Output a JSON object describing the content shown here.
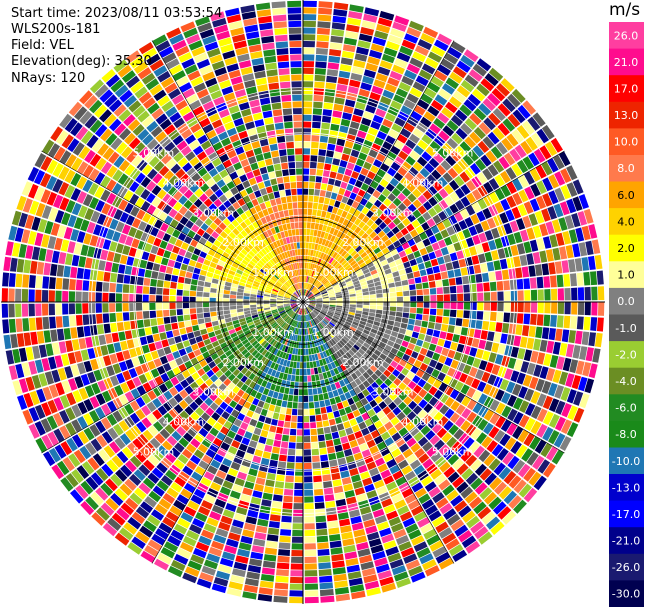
{
  "header": {
    "start_time": "Start time: 2023/08/11 03:53:54",
    "station": "WLS200s-181",
    "field": "Field: VEL",
    "elevation": "Elevation(deg): 35.30",
    "nrays": "NRays: 120"
  },
  "colorbar": {
    "unit": "m/s",
    "levels": [
      "26.0",
      "21.0",
      "17.0",
      "13.0",
      "10.0",
      "8.0",
      "6.0",
      "4.0",
      "2.0",
      "1.0",
      "0.0",
      "-1.0",
      "-2.0",
      "-4.0",
      "-6.0",
      "-8.0",
      "-10.0",
      "-13.0",
      "-17.0",
      "-21.0",
      "-26.0",
      "-30.0"
    ],
    "colors": [
      "#ff3ea0",
      "#ff0c8e",
      "#ff0000",
      "#ee2400",
      "#ff5a24",
      "#ff7a4c",
      "#ffa400",
      "#ffd200",
      "#ffff00",
      "#ffff99",
      "#808080",
      "#5a5a5a",
      "#9acd32",
      "#6b8e23",
      "#228b22",
      "#1a8a1a",
      "#1f77b4",
      "#0000cd",
      "#0000ff",
      "#00008b",
      "#1a1a70",
      "#000050"
    ]
  },
  "chart_data": {
    "type": "heatmap",
    "title": "",
    "field": "VEL",
    "units": "m/s",
    "nrays": 120,
    "elevation_deg": 35.3,
    "range_rings_km": [
      1.0,
      2.0,
      3.0,
      4.0,
      5.0
    ],
    "range_labels": [
      "1.00km",
      "2.00km",
      "3.00km",
      "4.00km",
      "5.00km"
    ],
    "grid": true,
    "sectors": [
      {
        "azimuth_from": 330,
        "azimuth_to": 360,
        "range_km": [
          0.2,
          2.5
        ],
        "velocity": 8.0
      },
      {
        "azimuth_from": 0,
        "azimuth_to": 60,
        "range_km": [
          0.2,
          2.5
        ],
        "velocity": 6.0
      },
      {
        "azimuth_from": 60,
        "azimuth_to": 95,
        "range_km": [
          0.2,
          2.5
        ],
        "velocity": 1.0
      },
      {
        "azimuth_from": 95,
        "azimuth_to": 150,
        "range_km": [
          0.2,
          2.5
        ],
        "velocity": 0.0
      },
      {
        "azimuth_from": 150,
        "azimuth_to": 210,
        "range_km": [
          0.2,
          2.5
        ],
        "velocity": -8.0
      },
      {
        "azimuth_from": 210,
        "azimuth_to": 255,
        "range_km": [
          0.2,
          2.5
        ],
        "velocity": -4.0
      },
      {
        "azimuth_from": 255,
        "azimuth_to": 285,
        "range_km": [
          0.2,
          2.5
        ],
        "velocity": 1.0
      },
      {
        "azimuth_from": 285,
        "azimuth_to": 330,
        "range_km": [
          0.2,
          2.5
        ],
        "velocity": 4.0
      },
      {
        "azimuth_from": 0,
        "azimuth_to": 360,
        "range_km": [
          2.5,
          7.1
        ],
        "velocity": "noise"
      }
    ]
  }
}
